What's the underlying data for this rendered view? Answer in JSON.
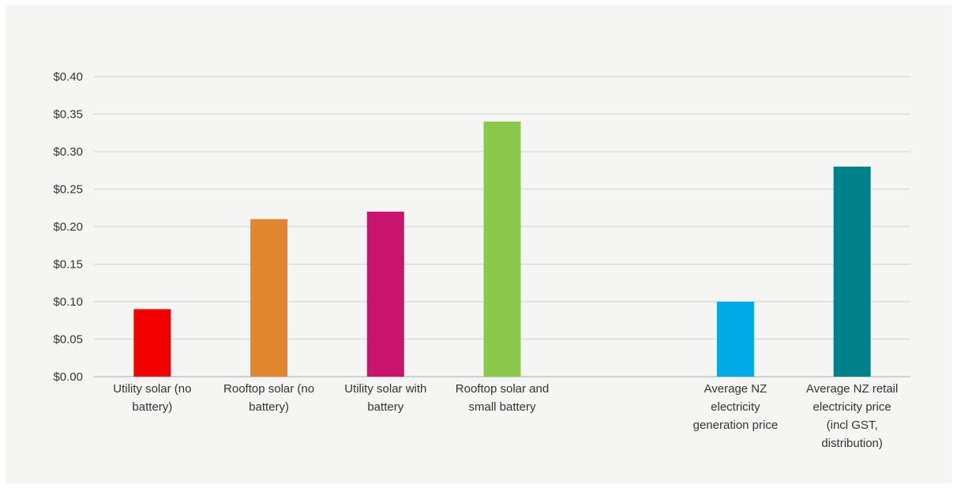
{
  "chart_data": {
    "type": "bar",
    "title": "",
    "xlabel": "",
    "ylabel": "",
    "ylim": [
      0,
      0.4
    ],
    "y_ticks": [
      0,
      0.05,
      0.1,
      0.15,
      0.2,
      0.25,
      0.3,
      0.35,
      0.4
    ],
    "y_tick_labels": [
      "$0.00",
      "$0.05",
      "$0.10",
      "$0.15",
      "$0.20",
      "$0.25",
      "$0.30",
      "$0.35",
      "$0.40"
    ],
    "grid": true,
    "legend": "none",
    "categories": [
      "Utility solar (no battery)",
      "Rooftop solar (no battery)",
      "Utility solar with battery",
      "Rooftop solar and small battery",
      "",
      "Average NZ electricity generation price",
      "Average NZ retail electricity price (incl GST, distribution)"
    ],
    "category_label_lines": [
      [
        "Utility solar (no",
        "battery)"
      ],
      [
        "Rooftop solar (no",
        "battery)"
      ],
      [
        "Utility solar with",
        "battery"
      ],
      [
        "Rooftop solar and",
        "small battery"
      ],
      [],
      [
        "Average NZ",
        "electricity",
        "generation price"
      ],
      [
        "Average NZ retail",
        "electricity price",
        "(incl GST,",
        "distribution)"
      ]
    ],
    "values": [
      0.09,
      0.21,
      0.22,
      0.34,
      null,
      0.1,
      0.28
    ],
    "colors": [
      "#f20000",
      "#e0862e",
      "#c8136f",
      "#8cc84b",
      null,
      "#00aae6",
      "#00818a"
    ]
  }
}
